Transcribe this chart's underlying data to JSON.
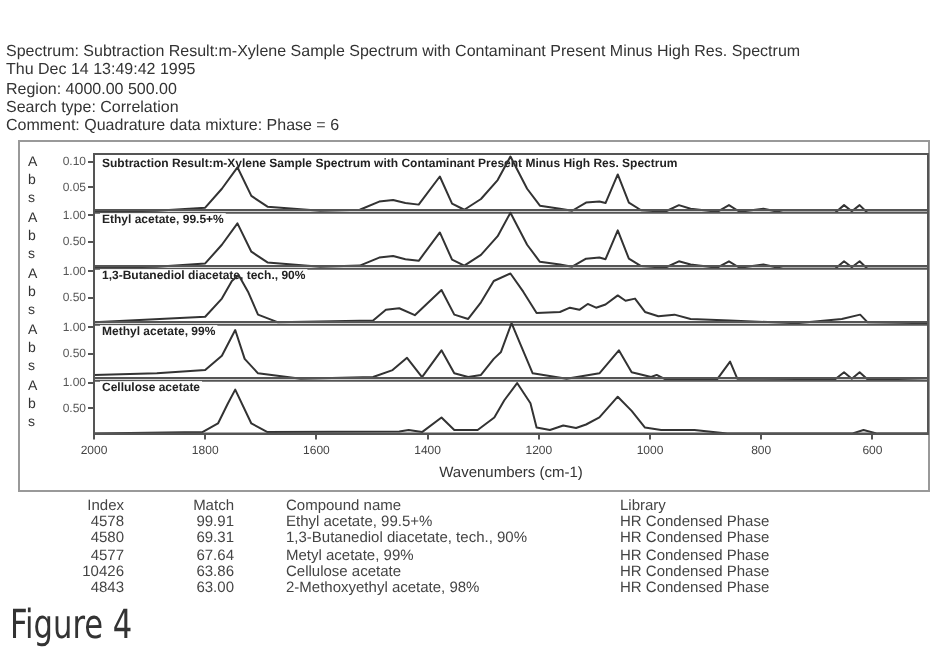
{
  "chart_data": [
    {
      "type": "other",
      "annotations": [
        "Spectrum: Subtraction Result:m-Xylene Sample Spectrum with Contaminant Present Minus High Res. Spectrum",
        "Thu Dec 14 13:49:42 1995",
        "Region:  4000.00  500.00",
        "Search type: Correlation",
        "Comment: Quadrature data mixture: Phase = 6"
      ]
    },
    {
      "type": "line",
      "title": "Subtraction Result:m-Xylene Sample Spectrum with Contaminant Present Minus High Res. Spectrum",
      "ylabel": "Abs",
      "xlim": [
        2000,
        500
      ],
      "ylim": [
        0,
        0.115
      ],
      "yticks": [
        {
          "value": 0.05,
          "label": "0.05"
        },
        {
          "value": 0.1,
          "label": "0.10"
        }
      ],
      "tick_labels": "y",
      "grid": false,
      "legend": false,
      "series": [
        {
          "color": "#333333",
          "x": [
            2000,
            1887,
            1800,
            1770,
            1742,
            1717,
            1688,
            1593,
            1522,
            1487,
            1462,
            1440,
            1416,
            1378,
            1356,
            1334,
            1304,
            1274,
            1251,
            1221,
            1198,
            1162,
            1140,
            1115,
            1091,
            1080,
            1058,
            1038,
            1016,
            973,
            948,
            927,
            879,
            858,
            839,
            796,
            761,
            667,
            651,
            637,
            623,
            609,
            500
          ],
          "values": [
            0.002,
            0.004,
            0.01,
            0.047,
            0.089,
            0.033,
            0.012,
            0.004,
            0.006,
            0.022,
            0.025,
            0.019,
            0.016,
            0.071,
            0.018,
            0.006,
            0.027,
            0.064,
            0.11,
            0.047,
            0.014,
            0.008,
            0.004,
            0.02,
            0.022,
            0.019,
            0.075,
            0.02,
            0.005,
            0.002,
            0.015,
            0.008,
            0.002,
            0.015,
            0.002,
            0.008,
            0,
            0,
            0.015,
            0.003,
            0.015,
            0,
            0
          ]
        }
      ]
    },
    {
      "type": "line",
      "title": "Ethyl acetate, 99.5+%",
      "ylabel": "Abs",
      "xlim": [
        2000,
        500
      ],
      "ylim": [
        0,
        1.1
      ],
      "yticks": [
        {
          "value": 0.5,
          "label": "0.50"
        },
        {
          "value": 1,
          "label": "1.00"
        }
      ],
      "tick_labels": "y",
      "grid": false,
      "legend": false,
      "series": [
        {
          "color": "#333333",
          "x": [
            2000,
            1887,
            1800,
            1770,
            1742,
            1717,
            1688,
            1593,
            1522,
            1487,
            1462,
            1440,
            1416,
            1378,
            1356,
            1334,
            1304,
            1274,
            1251,
            1221,
            1198,
            1162,
            1140,
            1115,
            1091,
            1080,
            1058,
            1038,
            1016,
            973,
            948,
            927,
            879,
            858,
            839,
            796,
            761,
            667,
            651,
            637,
            623,
            609,
            500
          ],
          "values": [
            0.02,
            0.04,
            0.1,
            0.45,
            0.85,
            0.32,
            0.12,
            0.04,
            0.06,
            0.21,
            0.24,
            0.18,
            0.15,
            0.68,
            0.17,
            0.06,
            0.26,
            0.61,
            1.05,
            0.45,
            0.13,
            0.08,
            0.04,
            0.19,
            0.21,
            0.18,
            0.72,
            0.19,
            0.05,
            0.02,
            0.14,
            0.08,
            0.02,
            0.14,
            0.02,
            0.08,
            0,
            0,
            0.14,
            0.03,
            0.14,
            0,
            0
          ]
        }
      ]
    },
    {
      "type": "line",
      "title": "1,3-Butanediol diacetate, tech., 90%",
      "ylabel": "Abs",
      "xlim": [
        2000,
        500
      ],
      "ylim": [
        0,
        1.1
      ],
      "yticks": [
        {
          "value": 0.5,
          "label": "0.50"
        },
        {
          "value": 1,
          "label": "1.00"
        }
      ],
      "tick_labels": "y",
      "grid": false,
      "legend": false,
      "series": [
        {
          "color": "#333333",
          "x": [
            2000,
            1800,
            1770,
            1752,
            1740,
            1723,
            1705,
            1670,
            1498,
            1475,
            1451,
            1423,
            1375,
            1352,
            1327,
            1304,
            1281,
            1251,
            1228,
            1204,
            1162,
            1144,
            1127,
            1112,
            1097,
            1080,
            1058,
            1044,
            1027,
            1009,
            985,
            956,
            927,
            857,
            737,
            655,
            622,
            609,
            500
          ],
          "values": [
            0.05,
            0.15,
            0.49,
            0.82,
            0.93,
            0.62,
            0.19,
            0.05,
            0.08,
            0.28,
            0.31,
            0.18,
            0.65,
            0.19,
            0.11,
            0.42,
            0.82,
            0.96,
            0.62,
            0.22,
            0.24,
            0.32,
            0.28,
            0.39,
            0.32,
            0.38,
            0.55,
            0.45,
            0.49,
            0.24,
            0.16,
            0.19,
            0.11,
            0.08,
            0.03,
            0.11,
            0.19,
            0.05,
            0.03
          ]
        }
      ]
    },
    {
      "type": "line",
      "title": "Methyl acetate, 99%",
      "ylabel": "Abs",
      "xlim": [
        2000,
        500
      ],
      "ylim": [
        0,
        1.1
      ],
      "yticks": [
        {
          "value": 0.5,
          "label": "0.50"
        },
        {
          "value": 1,
          "label": "1.00"
        }
      ],
      "tick_labels": "y",
      "grid": false,
      "legend": false,
      "series": [
        {
          "color": "#333333",
          "x": [
            2000,
            1887,
            1800,
            1770,
            1746,
            1729,
            1705,
            1628,
            1498,
            1463,
            1437,
            1410,
            1375,
            1352,
            1327,
            1304,
            1281,
            1268,
            1249,
            1233,
            1211,
            1150,
            1091,
            1056,
            1033,
            998,
            988,
            973,
            879,
            856,
            843,
            667,
            651,
            637,
            623,
            609,
            500
          ],
          "values": [
            0.11,
            0.14,
            0.2,
            0.47,
            0.95,
            0.41,
            0.14,
            0.04,
            0.07,
            0.2,
            0.43,
            0.07,
            0.57,
            0.14,
            0.07,
            0.11,
            0.41,
            0.54,
            1.08,
            0.68,
            0.14,
            0.04,
            0.14,
            0.57,
            0.16,
            0.07,
            0.11,
            0.03,
            0.03,
            0.36,
            0.04,
            0.03,
            0.16,
            0.04,
            0.16,
            0.03,
            0
          ]
        }
      ]
    },
    {
      "type": "line",
      "title": "Cellulose acetate",
      "ylabel": "Abs",
      "xlabel": "Wavenumbers (cm-1)",
      "xlim": [
        2000,
        500
      ],
      "ylim": [
        0,
        1.1
      ],
      "xticks": [
        2000,
        1800,
        1600,
        1400,
        1200,
        1000,
        800,
        600
      ],
      "yticks": [
        {
          "value": 0.5,
          "label": "0.50"
        },
        {
          "value": 1,
          "label": "1.00"
        }
      ],
      "grid": false,
      "legend": false,
      "series": [
        {
          "color": "#333333",
          "x": [
            2000,
            1805,
            1777,
            1759,
            1746,
            1717,
            1688,
            1451,
            1434,
            1410,
            1375,
            1352,
            1310,
            1280,
            1262,
            1239,
            1215,
            1204,
            1180,
            1156,
            1133,
            1115,
            1091,
            1058,
            1033,
            1009,
            980,
            920,
            861,
            743,
            637,
            616,
            591,
            500
          ],
          "values": [
            0,
            0.03,
            0.2,
            0.6,
            0.87,
            0.2,
            0.03,
            0.04,
            0.07,
            0.03,
            0.32,
            0.07,
            0.07,
            0.32,
            0.66,
            1.0,
            0.6,
            0.12,
            0.07,
            0.16,
            0.11,
            0.18,
            0.32,
            0.73,
            0.45,
            0.12,
            0.07,
            0.07,
            0,
            0,
            0,
            0.07,
            0,
            0
          ]
        }
      ]
    },
    {
      "type": "other",
      "annotations": [
        "Index",
        "Match",
        "Compound name",
        "Library",
        "4578",
        "99.91",
        "Ethyl acetate, 99.5+%",
        "HR Condensed Phase",
        "4580",
        "69.31",
        "1,3-Butanediol diacetate, tech., 90%",
        "HR Condensed Phase",
        "4577",
        "67.64",
        "Metyl acetate, 99%",
        "HR Condensed Phase",
        "10426",
        "63.86",
        "Cellulose acetate",
        "HR Condensed Phase",
        "4843",
        "63.00",
        "2-Methoxyethyl acetate, 98%",
        "HR Condensed Phase",
        "Figure 4"
      ]
    }
  ]
}
